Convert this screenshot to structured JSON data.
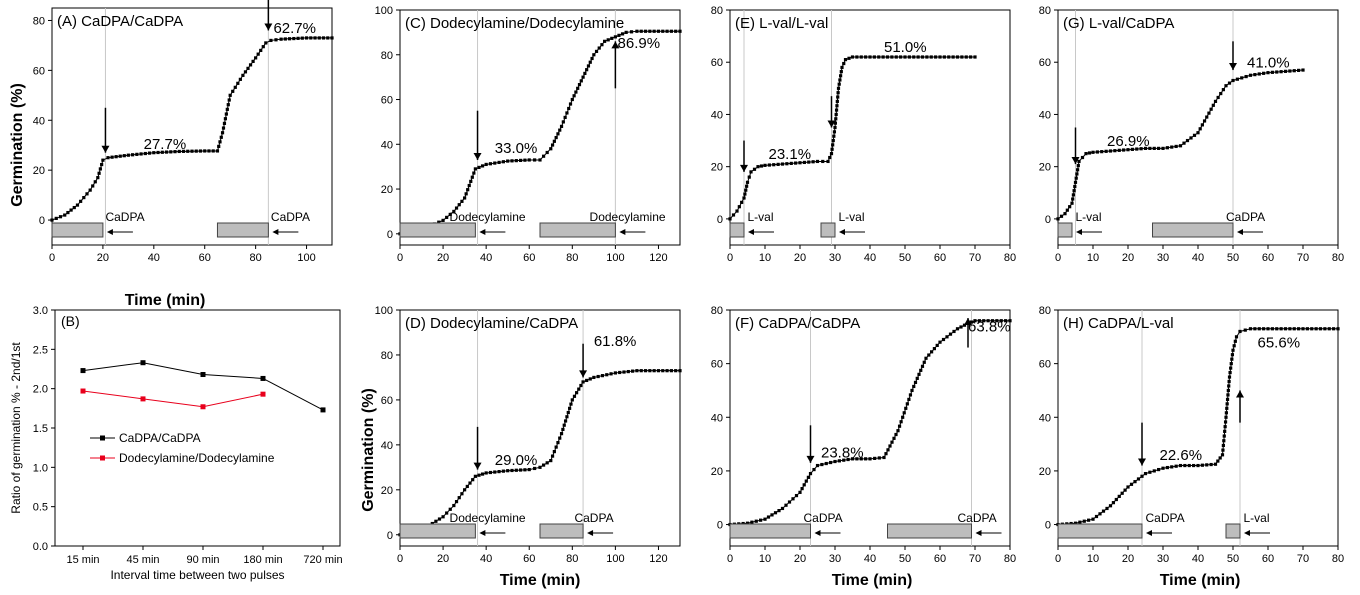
{
  "figure": {
    "ylabel_germination": "Germination (%)",
    "xlabel_time": "Time (min)"
  },
  "chart_data": [
    {
      "id": "A",
      "type": "line",
      "title": "(A) CaDPA/CaDPA",
      "xlim": [
        0,
        110
      ],
      "ylim": [
        -10,
        85
      ],
      "xticks": [
        0,
        20,
        40,
        60,
        80,
        100
      ],
      "yticks": [
        0,
        20,
        40,
        60,
        80
      ],
      "xlabel": "Time (min)",
      "ylabel": "Germination (%)",
      "series": [
        {
          "x": [
            0,
            5,
            10,
            15,
            18,
            20,
            22,
            30,
            40,
            50,
            60,
            65,
            67,
            70,
            75,
            80,
            84,
            86,
            90,
            100,
            110
          ],
          "y": [
            0,
            2,
            6,
            12,
            17,
            24,
            25,
            26,
            27,
            27.5,
            27.7,
            27.7,
            35,
            50,
            58,
            65,
            71,
            72,
            72.5,
            73,
            73
          ]
        }
      ],
      "annotations": [
        {
          "text": "27.7%",
          "x": 36,
          "y": 28.5
        },
        {
          "text": "62.7%",
          "x": 87,
          "y": 75
        }
      ],
      "arrows": [
        {
          "x": 21,
          "y_top": 45,
          "y_bot": 27
        },
        {
          "x": 85,
          "y_top": 90,
          "y_bot": 76
        }
      ],
      "vlines": [
        21,
        85
      ],
      "pulses": [
        {
          "label": "CaDPA",
          "x0": 0,
          "x1": 20,
          "label_x": 21
        },
        {
          "label": "CaDPA",
          "x0": 65,
          "x1": 85,
          "label_x": 86
        }
      ]
    },
    {
      "id": "C",
      "type": "line",
      "title": "(C) Dodecylamine/Dodecylamine",
      "xlim": [
        0,
        130
      ],
      "ylim": [
        -5,
        100
      ],
      "xticks": [
        0,
        20,
        40,
        60,
        80,
        100,
        120
      ],
      "yticks": [
        0,
        20,
        40,
        60,
        80,
        100
      ],
      "xlabel": "",
      "ylabel": "",
      "series": [
        {
          "x": [
            0,
            10,
            20,
            25,
            30,
            35,
            40,
            50,
            60,
            65,
            70,
            75,
            80,
            85,
            90,
            95,
            100,
            105,
            110,
            130
          ],
          "y": [
            0,
            2,
            6,
            10,
            16,
            29,
            31,
            32.5,
            33,
            33,
            38,
            48,
            60,
            70,
            80,
            86,
            88,
            90,
            90.5,
            90.5
          ]
        }
      ],
      "annotations": [
        {
          "text": "33.0%",
          "x": 44,
          "y": 36
        },
        {
          "text": "86.9%",
          "x": 101,
          "y": 83
        }
      ],
      "arrows": [
        {
          "x": 36,
          "y_top": 55,
          "y_bot": 33
        },
        {
          "x": 100,
          "y_top": 65,
          "y_bot": 86
        }
      ],
      "vlines": [
        36,
        100
      ],
      "pulses": [
        {
          "label": "Dodecylamine",
          "x0": 0,
          "x1": 35,
          "label_x": 23
        },
        {
          "label": "Dodecylamine",
          "x0": 65,
          "x1": 100,
          "label_x": 88
        }
      ]
    },
    {
      "id": "E",
      "type": "line",
      "title": "(E) L-val/L-val",
      "xlim": [
        0,
        80
      ],
      "ylim": [
        -10,
        80
      ],
      "xticks": [
        0,
        10,
        20,
        30,
        40,
        50,
        60,
        70,
        80
      ],
      "yticks": [
        0,
        20,
        40,
        60,
        80
      ],
      "xlabel": "",
      "ylabel": "",
      "series": [
        {
          "x": [
            0,
            2,
            4,
            5,
            6,
            8,
            10,
            15,
            20,
            25,
            28,
            29,
            30,
            31,
            32,
            33,
            35,
            40,
            50,
            60,
            70
          ],
          "y": [
            0,
            3,
            8,
            14,
            18,
            20,
            20.5,
            21,
            21.5,
            22,
            22,
            25,
            35,
            50,
            58,
            61,
            62,
            62,
            62,
            62,
            62
          ]
        }
      ],
      "annotations": [
        {
          "text": "23.1%",
          "x": 11,
          "y": 23
        },
        {
          "text": "51.0%",
          "x": 44,
          "y": 64
        }
      ],
      "arrows": [
        {
          "x": 4,
          "y_top": 30,
          "y_bot": 18
        },
        {
          "x": 29,
          "y_top": 47,
          "y_bot": 35
        }
      ],
      "vlines": [
        4,
        29
      ],
      "pulses": [
        {
          "label": "L-val",
          "x0": 0,
          "x1": 4,
          "label_x": 5
        },
        {
          "label": "L-val",
          "x0": 26,
          "x1": 30,
          "label_x": 31
        }
      ]
    },
    {
      "id": "G",
      "type": "line",
      "title": "(G) L-val/CaDPA",
      "xlim": [
        0,
        80
      ],
      "ylim": [
        -10,
        80
      ],
      "xticks": [
        0,
        10,
        20,
        30,
        40,
        50,
        60,
        70,
        80
      ],
      "yticks": [
        0,
        20,
        40,
        60,
        80
      ],
      "xlabel": "",
      "ylabel": "",
      "series": [
        {
          "x": [
            0,
            2,
            4,
            5,
            6,
            8,
            10,
            15,
            20,
            25,
            30,
            35,
            40,
            45,
            48,
            50,
            55,
            60,
            65,
            70
          ],
          "y": [
            0,
            2,
            6,
            14,
            22,
            25,
            25.5,
            26,
            26.5,
            27,
            27,
            28,
            33,
            45,
            51,
            53,
            55,
            56,
            56.5,
            57
          ]
        }
      ],
      "annotations": [
        {
          "text": "26.9%",
          "x": 14,
          "y": 28
        },
        {
          "text": "41.0%",
          "x": 54,
          "y": 58
        }
      ],
      "arrows": [
        {
          "x": 5,
          "y_top": 35,
          "y_bot": 21
        },
        {
          "x": 50,
          "y_top": 68,
          "y_bot": 57
        }
      ],
      "vlines": [
        5,
        50
      ],
      "pulses": [
        {
          "label": "L-val",
          "x0": 0,
          "x1": 4,
          "label_x": 5
        },
        {
          "label": "CaDPA",
          "x0": 27,
          "x1": 50,
          "label_x": 48
        }
      ]
    },
    {
      "id": "B",
      "type": "line",
      "title": "(B)",
      "categories": [
        "15 min",
        "45 min",
        "90 min",
        "180 min",
        "720 min"
      ],
      "ylim": [
        0,
        3.0
      ],
      "yticks": [
        0.0,
        0.5,
        1.0,
        1.5,
        2.0,
        2.5,
        3.0
      ],
      "xlabel": "Interval time between two pulses",
      "ylabel": "Ratio of germination % - 2nd/1st",
      "legend": "center-left",
      "series": [
        {
          "name": "CaDPA/CaDPA",
          "color": "#000000",
          "values": [
            2.23,
            2.33,
            2.18,
            2.13,
            1.73
          ]
        },
        {
          "name": "Dodecylamine/Dodecylamine",
          "color": "#e8001c",
          "values": [
            1.97,
            1.87,
            1.77,
            1.93,
            null
          ]
        }
      ]
    },
    {
      "id": "D",
      "type": "line",
      "title": "(D) Dodecylamine/CaDPA",
      "xlim": [
        0,
        130
      ],
      "ylim": [
        -5,
        100
      ],
      "xticks": [
        0,
        20,
        40,
        60,
        80,
        100,
        120
      ],
      "yticks": [
        0,
        20,
        40,
        60,
        80,
        100
      ],
      "xlabel": "Time (min)",
      "ylabel": "Germination (%)",
      "series": [
        {
          "x": [
            0,
            10,
            20,
            25,
            30,
            35,
            40,
            50,
            60,
            65,
            70,
            75,
            80,
            85,
            90,
            100,
            110,
            130
          ],
          "y": [
            0,
            2,
            8,
            13,
            20,
            26,
            27.5,
            28.5,
            29,
            30,
            33,
            45,
            60,
            68,
            70,
            72,
            73,
            73
          ]
        }
      ],
      "annotations": [
        {
          "text": "29.0%",
          "x": 44,
          "y": 31
        },
        {
          "text": "61.8%",
          "x": 90,
          "y": 84
        }
      ],
      "arrows": [
        {
          "x": 36,
          "y_top": 48,
          "y_bot": 29
        },
        {
          "x": 85,
          "y_top": 85,
          "y_bot": 70
        }
      ],
      "vlines": [
        36,
        85
      ],
      "pulses": [
        {
          "label": "Dodecylamine",
          "x0": 0,
          "x1": 35,
          "label_x": 23
        },
        {
          "label": "CaDPA",
          "x0": 65,
          "x1": 85,
          "label_x": 81
        }
      ]
    },
    {
      "id": "F",
      "type": "line",
      "title": "(F) CaDPA/CaDPA",
      "xlim": [
        0,
        80
      ],
      "ylim": [
        -8,
        80
      ],
      "xticks": [
        0,
        10,
        20,
        30,
        40,
        50,
        60,
        70,
        80
      ],
      "yticks": [
        0,
        20,
        40,
        60,
        80
      ],
      "xlabel": "Time (min)",
      "ylabel": "",
      "series": [
        {
          "x": [
            0,
            5,
            10,
            15,
            20,
            23,
            25,
            30,
            35,
            40,
            44,
            48,
            52,
            56,
            60,
            65,
            68,
            70,
            75,
            80
          ],
          "y": [
            0,
            0.5,
            2,
            6,
            12,
            19,
            22,
            23.5,
            24.5,
            24.5,
            25,
            35,
            50,
            62,
            68,
            73,
            75,
            76,
            76,
            76
          ]
        }
      ],
      "annotations": [
        {
          "text": "23.8%",
          "x": 26,
          "y": 25
        },
        {
          "text": "63.8%",
          "x": 68,
          "y": 72
        }
      ],
      "arrows": [
        {
          "x": 23,
          "y_top": 37,
          "y_bot": 23
        },
        {
          "x": 68,
          "y_top": 66,
          "y_bot": 77
        }
      ],
      "vlines": [
        23,
        69
      ],
      "pulses": [
        {
          "label": "CaDPA",
          "x0": 0,
          "x1": 23,
          "label_x": 21
        },
        {
          "label": "CaDPA",
          "x0": 45,
          "x1": 69,
          "label_x": 65
        }
      ]
    },
    {
      "id": "H",
      "type": "line",
      "title": "(H) CaDPA/L-val",
      "xlim": [
        0,
        80
      ],
      "ylim": [
        -8,
        80
      ],
      "xticks": [
        0,
        10,
        20,
        30,
        40,
        50,
        60,
        70,
        80
      ],
      "yticks": [
        0,
        20,
        40,
        60,
        80
      ],
      "xlabel": "Time (min)",
      "ylabel": "",
      "series": [
        {
          "x": [
            0,
            5,
            10,
            15,
            20,
            23,
            25,
            30,
            35,
            40,
            45,
            47,
            48,
            49,
            50,
            51,
            52,
            55,
            60,
            70,
            80
          ],
          "y": [
            0,
            0.5,
            2,
            7,
            14,
            17,
            19,
            21,
            22,
            22,
            22.5,
            26,
            40,
            55,
            65,
            70,
            72,
            73,
            73,
            73,
            73
          ]
        }
      ],
      "annotations": [
        {
          "text": "22.6%",
          "x": 29,
          "y": 24
        },
        {
          "text": "65.6%",
          "x": 57,
          "y": 66
        }
      ],
      "arrows": [
        {
          "x": 24,
          "y_top": 38,
          "y_bot": 22
        },
        {
          "x": 52,
          "y_top": 38,
          "y_bot": 50
        }
      ],
      "vlines": [
        24,
        52
      ],
      "pulses": [
        {
          "label": "CaDPA",
          "x0": 0,
          "x1": 24,
          "label_x": 25
        },
        {
          "label": "L-val",
          "x0": 48,
          "x1": 52,
          "label_x": 53
        }
      ]
    }
  ]
}
